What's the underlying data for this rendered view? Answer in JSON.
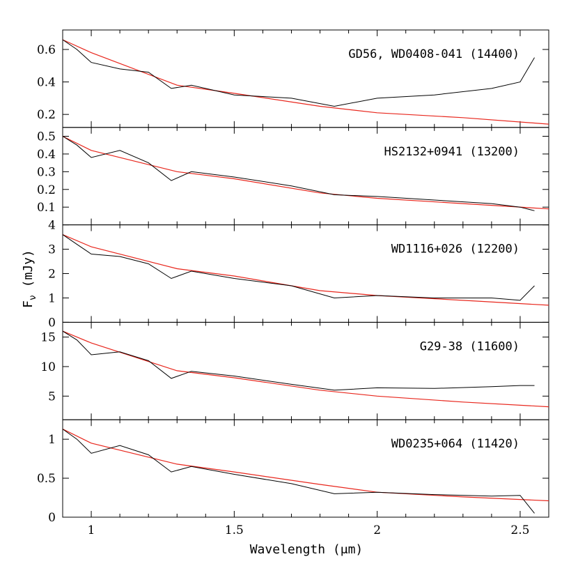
{
  "chart_data": {
    "type": "line",
    "xlabel": "Wavelength (μm)",
    "ylabel": "F_ν (mJy)",
    "ylabel_main": "F",
    "ylabel_sub": "ν",
    "ylabel_unit": " (mJy)",
    "xlim": [
      0.9,
      2.6
    ],
    "xticks": [
      1,
      1.5,
      2,
      2.5
    ],
    "xtick_labels": [
      "1",
      "1.5",
      "2",
      "2.5"
    ],
    "line_colors": {
      "observed": "#000000",
      "model": "#e8261c"
    },
    "panels": [
      {
        "label": "GD56, WD0408-041 (14400)",
        "ylim": [
          0.12,
          0.72
        ],
        "yticks": [
          0.2,
          0.4,
          0.6
        ],
        "ytick_labels": [
          "0.2",
          "0.4",
          "0.6"
        ],
        "observed": {
          "x": [
            0.9,
            0.95,
            1.0,
            1.1,
            1.2,
            1.28,
            1.35,
            1.5,
            1.7,
            1.85,
            2.0,
            2.2,
            2.4,
            2.5,
            2.55
          ],
          "y": [
            0.66,
            0.6,
            0.52,
            0.48,
            0.46,
            0.36,
            0.38,
            0.32,
            0.3,
            0.25,
            0.3,
            0.32,
            0.36,
            0.4,
            0.55
          ]
        },
        "model": {
          "x": [
            0.9,
            1.0,
            1.3,
            1.5,
            1.8,
            2.0,
            2.3,
            2.6
          ],
          "y": [
            0.66,
            0.58,
            0.38,
            0.33,
            0.25,
            0.21,
            0.18,
            0.14
          ]
        }
      },
      {
        "label": "HS2132+0941 (13200)",
        "ylim": [
          0.0,
          0.55
        ],
        "yticks": [
          0.1,
          0.2,
          0.3,
          0.4,
          0.5
        ],
        "ytick_labels": [
          "0.1",
          "0.2",
          "0.3",
          "0.4",
          "0.5"
        ],
        "observed": {
          "x": [
            0.9,
            0.95,
            1.0,
            1.1,
            1.2,
            1.28,
            1.35,
            1.5,
            1.7,
            1.85,
            2.0,
            2.2,
            2.4,
            2.5,
            2.55
          ],
          "y": [
            0.5,
            0.45,
            0.38,
            0.42,
            0.35,
            0.25,
            0.3,
            0.27,
            0.22,
            0.17,
            0.16,
            0.14,
            0.12,
            0.1,
            0.08
          ]
        },
        "model": {
          "x": [
            0.9,
            1.0,
            1.3,
            1.5,
            1.8,
            2.0,
            2.3,
            2.6
          ],
          "y": [
            0.5,
            0.42,
            0.3,
            0.26,
            0.18,
            0.15,
            0.12,
            0.09
          ]
        }
      },
      {
        "label": "WD1116+026 (12200)",
        "ylim": [
          0.0,
          4.0
        ],
        "yticks": [
          0,
          1,
          2,
          3,
          4
        ],
        "ytick_labels": [
          "0",
          "1",
          "2",
          "3",
          "4"
        ],
        "observed": {
          "x": [
            0.9,
            0.95,
            1.0,
            1.1,
            1.2,
            1.28,
            1.35,
            1.5,
            1.7,
            1.85,
            2.0,
            2.2,
            2.4,
            2.5,
            2.55
          ],
          "y": [
            3.6,
            3.2,
            2.8,
            2.7,
            2.4,
            1.8,
            2.1,
            1.8,
            1.5,
            1.0,
            1.1,
            1.0,
            1.0,
            0.9,
            1.5
          ]
        },
        "model": {
          "x": [
            0.9,
            1.0,
            1.3,
            1.5,
            1.8,
            2.0,
            2.3,
            2.6
          ],
          "y": [
            3.6,
            3.1,
            2.2,
            1.9,
            1.3,
            1.1,
            0.9,
            0.7
          ]
        }
      },
      {
        "label": "G29-38 (11600)",
        "ylim": [
          1.0,
          17.5
        ],
        "yticks": [
          5,
          10,
          15
        ],
        "ytick_labels": [
          "5",
          "10",
          "15"
        ],
        "observed": {
          "x": [
            0.9,
            0.95,
            1.0,
            1.1,
            1.2,
            1.28,
            1.35,
            1.5,
            1.7,
            1.85,
            2.0,
            2.2,
            2.4,
            2.5,
            2.55
          ],
          "y": [
            16.0,
            14.5,
            12.0,
            12.5,
            11.0,
            8.0,
            9.2,
            8.4,
            7.0,
            6.0,
            6.4,
            6.3,
            6.6,
            6.8,
            6.8
          ]
        },
        "model": {
          "x": [
            0.9,
            1.0,
            1.3,
            1.5,
            1.8,
            2.0,
            2.3,
            2.6
          ],
          "y": [
            16.0,
            14.0,
            9.3,
            8.1,
            6.0,
            5.0,
            4.0,
            3.2
          ]
        }
      },
      {
        "label": "WD0235+064 (11420)",
        "ylim": [
          0.0,
          1.25
        ],
        "yticks": [
          0,
          0.5,
          1
        ],
        "ytick_labels": [
          "0",
          "0.5",
          "1"
        ],
        "observed": {
          "x": [
            0.9,
            0.95,
            1.0,
            1.1,
            1.2,
            1.28,
            1.35,
            1.5,
            1.7,
            1.85,
            2.0,
            2.2,
            2.4,
            2.5,
            2.55
          ],
          "y": [
            1.13,
            1.0,
            0.82,
            0.92,
            0.8,
            0.58,
            0.65,
            0.55,
            0.43,
            0.3,
            0.32,
            0.29,
            0.27,
            0.28,
            0.05
          ]
        },
        "model": {
          "x": [
            0.9,
            1.0,
            1.3,
            1.5,
            1.8,
            2.0,
            2.3,
            2.6
          ],
          "y": [
            1.13,
            0.95,
            0.68,
            0.58,
            0.42,
            0.32,
            0.26,
            0.21
          ]
        }
      }
    ]
  }
}
